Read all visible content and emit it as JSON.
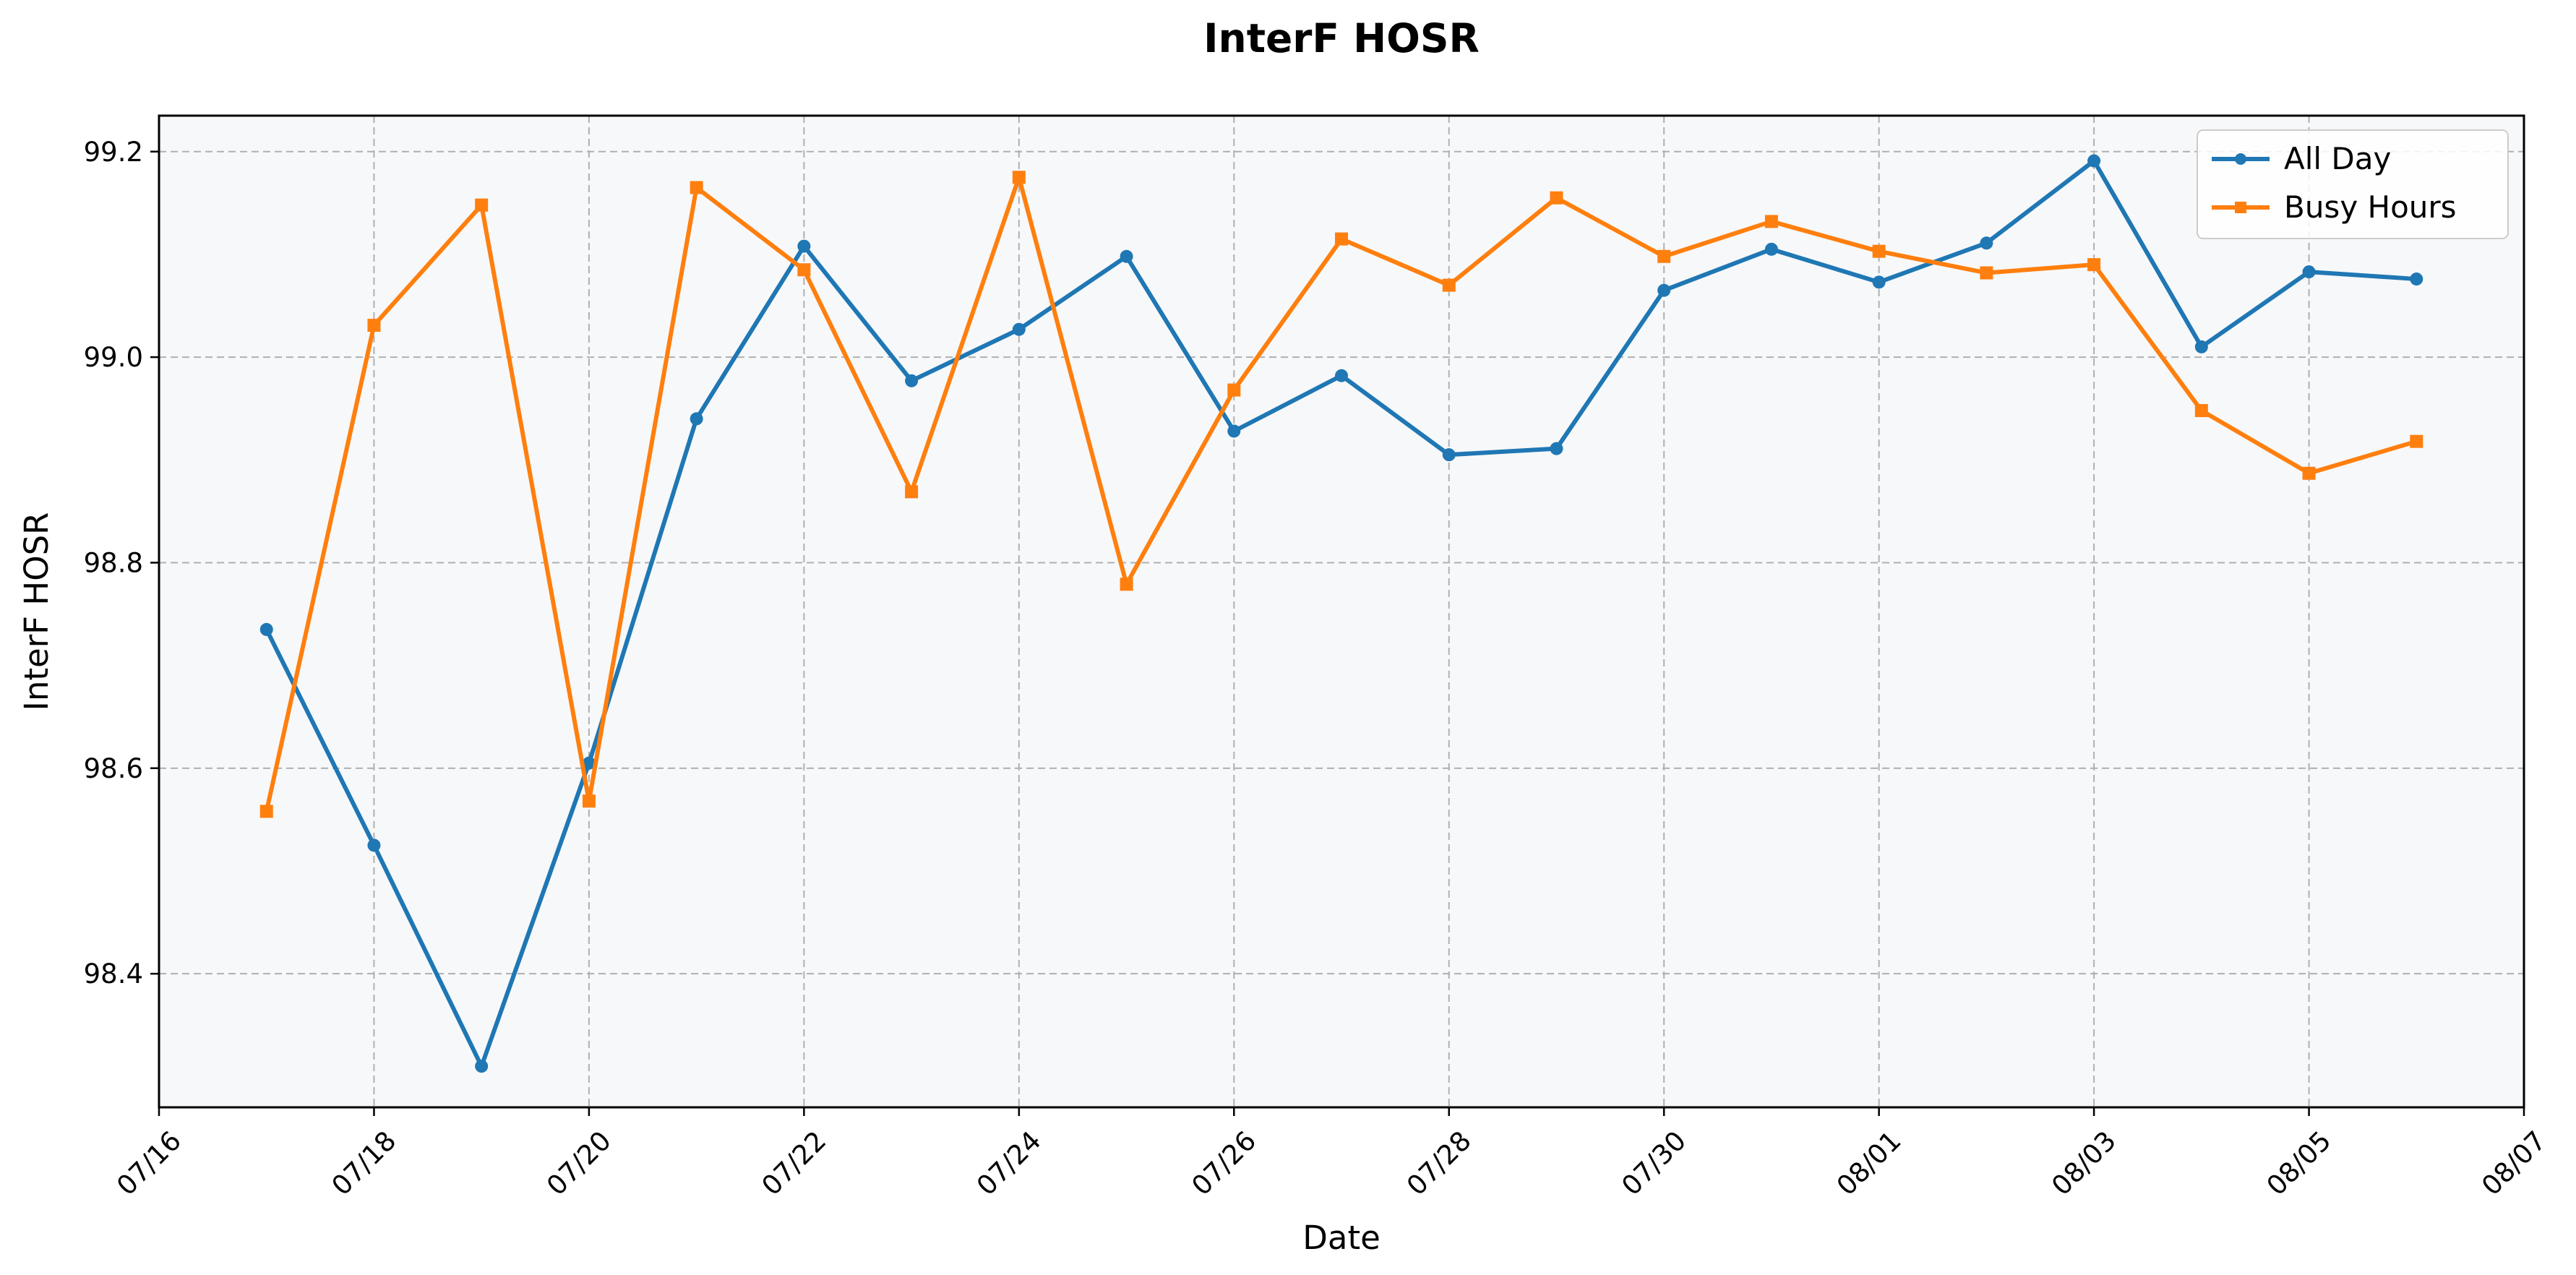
{
  "chart_data": {
    "type": "line",
    "title": "InterF HOSR",
    "xlabel": "Date",
    "ylabel": "InterF HOSR",
    "x": [
      "07/17",
      "07/18",
      "07/19",
      "07/20",
      "07/21",
      "07/22",
      "07/23",
      "07/24",
      "07/25",
      "07/26",
      "07/27",
      "07/28",
      "07/29",
      "07/30",
      "07/31",
      "08/01",
      "08/02",
      "08/03",
      "08/04",
      "08/05",
      "08/06"
    ],
    "x_ticks": [
      "07/16",
      "07/18",
      "07/20",
      "07/22",
      "07/24",
      "07/26",
      "07/28",
      "07/30",
      "08/01",
      "08/03",
      "08/05",
      "08/07"
    ],
    "xlim": [
      "07/16",
      "08/07"
    ],
    "ylim": [
      98.27,
      99.235
    ],
    "y_ticks": [
      98.4,
      98.6,
      98.8,
      99.0,
      99.2
    ],
    "y_tick_labels": [
      "98.4",
      "98.6",
      "98.8",
      "99.0",
      "99.2"
    ],
    "grid": true,
    "legend_position": "top-right",
    "series": [
      {
        "name": "All Day",
        "color": "#1f77b4",
        "marker": "circle",
        "values": [
          98.735,
          98.525,
          98.31,
          98.605,
          98.94,
          99.108,
          98.977,
          99.027,
          99.098,
          98.928,
          98.982,
          98.905,
          98.911,
          99.065,
          99.105,
          99.073,
          99.111,
          99.191,
          99.01,
          99.083,
          99.076
        ]
      },
      {
        "name": "Busy Hours",
        "color": "#ff7f0e",
        "marker": "square",
        "values": [
          98.558,
          99.031,
          99.148,
          98.568,
          99.165,
          99.085,
          98.869,
          99.175,
          98.779,
          98.968,
          99.115,
          99.07,
          99.155,
          99.098,
          99.132,
          99.103,
          99.082,
          99.09,
          98.948,
          98.887,
          98.918
        ]
      }
    ]
  }
}
